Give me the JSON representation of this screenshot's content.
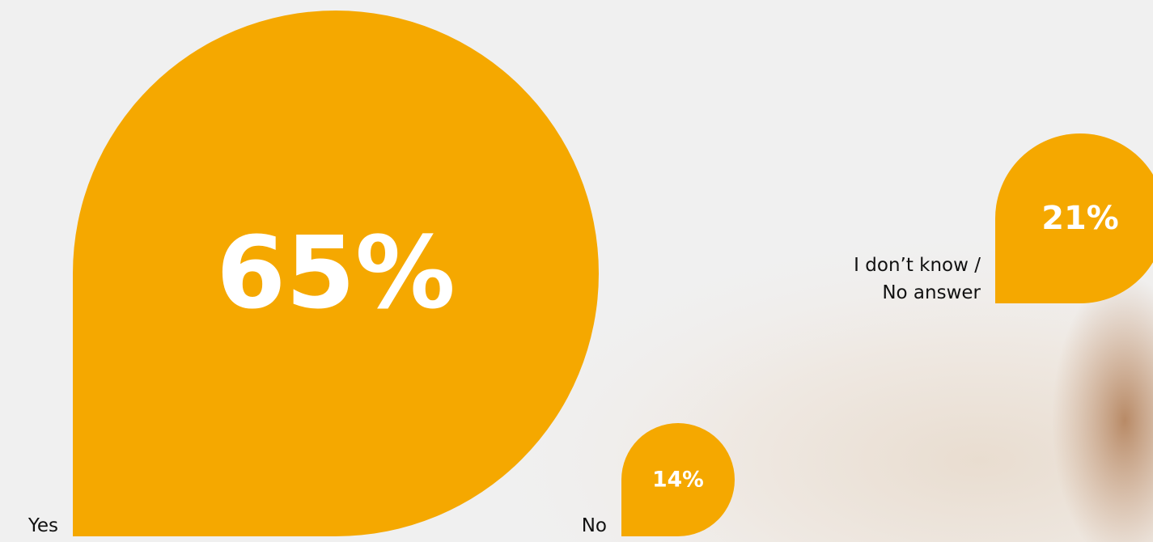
{
  "chart_data": {
    "type": "bubble",
    "categories": [
      "Yes",
      "No",
      "I don’t know / No answer"
    ],
    "values": [
      65,
      14,
      21
    ],
    "value_labels": [
      "65%",
      "14%",
      "21%"
    ],
    "color": "#f5a800"
  }
}
